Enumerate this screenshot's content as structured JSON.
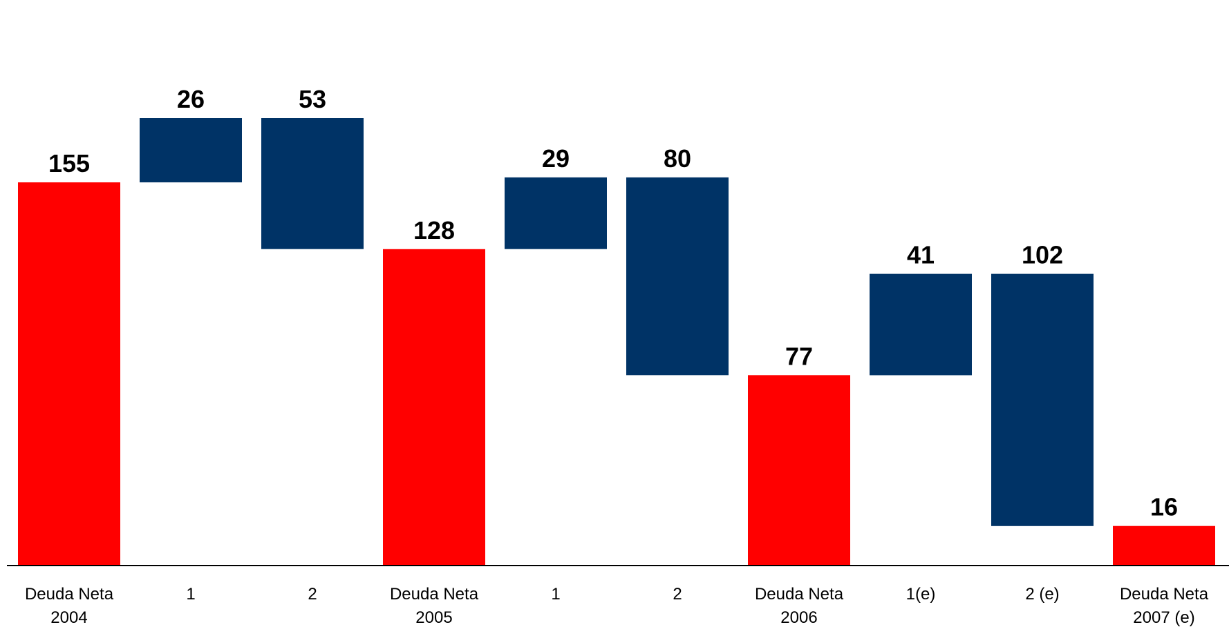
{
  "chart_data": {
    "type": "bar",
    "subtype": "waterfall",
    "title": "",
    "xlabel": "",
    "ylabel": "",
    "ylim": [
      0,
      175
    ],
    "grid": false,
    "legend": "none",
    "colors": {
      "total": "#ff0000",
      "change": "#003366",
      "axis": "#000000"
    },
    "bars": [
      {
        "label_lines": [
          "Deuda Neta",
          "2004"
        ],
        "kind": "total",
        "low": 0,
        "high": 155,
        "value_label": "155"
      },
      {
        "label_lines": [
          "1"
        ],
        "kind": "change",
        "low": 155,
        "high": 181,
        "value_label": "26"
      },
      {
        "label_lines": [
          "2"
        ],
        "kind": "change",
        "low": 128,
        "high": 181,
        "value_label": "53"
      },
      {
        "label_lines": [
          "Deuda Neta",
          "2005"
        ],
        "kind": "total",
        "low": 0,
        "high": 128,
        "value_label": "128"
      },
      {
        "label_lines": [
          "1"
        ],
        "kind": "change",
        "low": 128,
        "high": 157,
        "value_label": "29"
      },
      {
        "label_lines": [
          "2"
        ],
        "kind": "change",
        "low": 77,
        "high": 157,
        "value_label": "80"
      },
      {
        "label_lines": [
          "Deuda Neta",
          "2006"
        ],
        "kind": "total",
        "low": 0,
        "high": 77,
        "value_label": "77"
      },
      {
        "label_lines": [
          "1(e)"
        ],
        "kind": "change",
        "low": 77,
        "high": 118,
        "value_label": "41"
      },
      {
        "label_lines": [
          "2 (e)"
        ],
        "kind": "change",
        "low": 16,
        "high": 118,
        "value_label": "102"
      },
      {
        "label_lines": [
          "Deuda Neta",
          "2007 (e)"
        ],
        "kind": "total",
        "low": 0,
        "high": 16,
        "value_label": "16"
      }
    ]
  }
}
